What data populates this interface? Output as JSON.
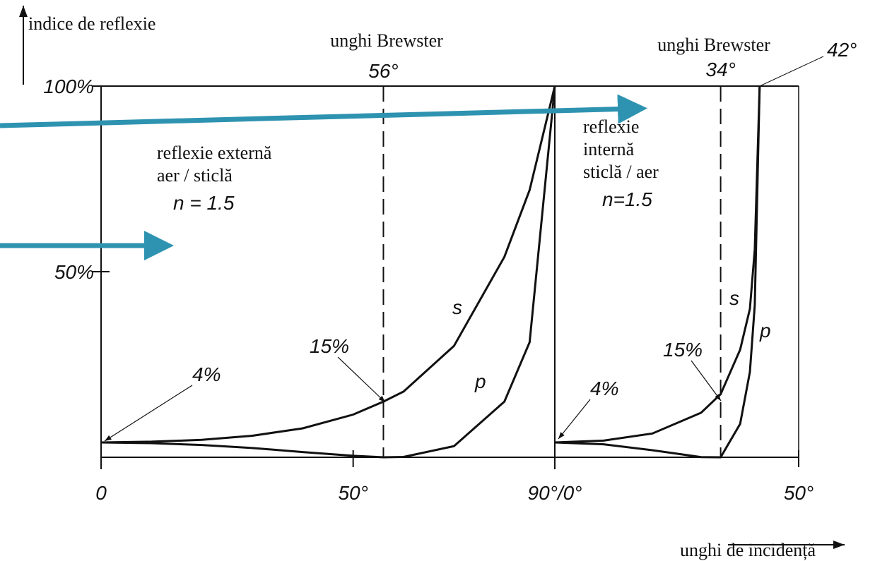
{
  "y_axis_label": "indice de reflexie",
  "x_axis_label": "unghi de incidență",
  "chart_data": [
    {
      "type": "line",
      "title_lines": [
        "reflexie externă",
        "aer / sticlă",
        "n = 1.5"
      ],
      "x": [
        0,
        10,
        20,
        30,
        40,
        50,
        56,
        60,
        70,
        80,
        85,
        90
      ],
      "series": [
        {
          "name": "s",
          "color": "#111111",
          "values": [
            4,
            4.2,
            4.7,
            5.8,
            7.8,
            11.5,
            15,
            17.7,
            30,
            54,
            72,
            100
          ]
        },
        {
          "name": "p",
          "color": "#111111",
          "values": [
            4,
            3.8,
            3.3,
            2.5,
            1.4,
            0.4,
            0,
            0.1,
            3,
            15,
            31,
            100
          ]
        }
      ],
      "xlim": [
        0,
        90
      ],
      "ylim": [
        0,
        100
      ],
      "xticks": [
        0,
        {
          "value": 50,
          "label": "50°"
        },
        {
          "value": 90,
          "label": "90°/0°"
        }
      ],
      "yticks": [
        {
          "value": 50,
          "label": "50%"
        },
        {
          "value": 100,
          "label": "100%"
        }
      ],
      "brewster": {
        "text": "unghi Brewster",
        "value": 56,
        "label": "56°"
      },
      "annotations": [
        "4%",
        "15%"
      ]
    },
    {
      "type": "line",
      "title_lines": [
        "reflexie",
        "internă",
        "sticlă / aer",
        "n=1.5"
      ],
      "x": [
        0,
        10,
        20,
        30,
        34,
        38,
        40,
        41,
        42
      ],
      "series": [
        {
          "name": "s",
          "color": "#111111",
          "values": [
            4,
            4.5,
            6.4,
            12,
            17,
            29,
            40,
            56,
            100
          ]
        },
        {
          "name": "p",
          "color": "#111111",
          "values": [
            4,
            3.5,
            1.9,
            0.05,
            0,
            9,
            23,
            41,
            100
          ]
        }
      ],
      "xlim": [
        0,
        50
      ],
      "ylim": [
        0,
        100
      ],
      "xticks": [
        {
          "value": 50,
          "label": "50°"
        }
      ],
      "brewster": {
        "text": "unghi Brewster",
        "value": 34,
        "label": "34°"
      },
      "critical": {
        "value": 42,
        "label": "42°"
      },
      "annotations": [
        "4%",
        "15%"
      ]
    }
  ]
}
